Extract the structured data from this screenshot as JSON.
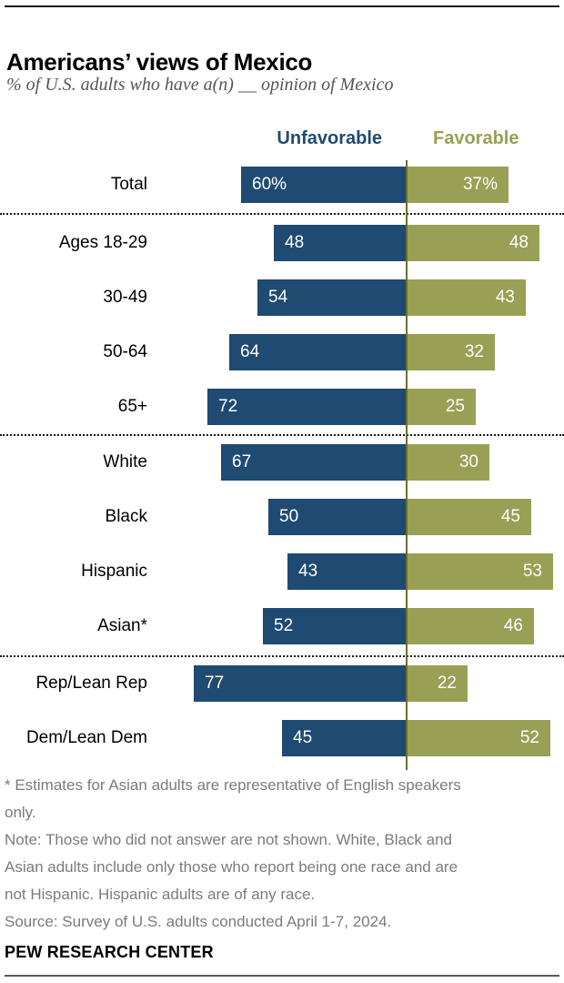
{
  "header": {
    "title": "Americans’ views of Mexico",
    "subtitle": "% of U.S. adults who have a(n) __ opinion of Mexico"
  },
  "legend": {
    "unfavorable_label": "Unfavorable",
    "favorable_label": "Favorable"
  },
  "colors": {
    "unfavorable": "#1f4a72",
    "favorable": "#99a055",
    "axis_line": "#6b6e2e"
  },
  "chart_data": {
    "type": "bar",
    "orientation": "horizontal-diverging",
    "title": "Americans’ views of Mexico",
    "categories": [
      "Total",
      "Ages 18-29",
      "30-49",
      "50-64",
      "65+",
      "White",
      "Black",
      "Hispanic",
      "Asian*",
      "Rep/Lean Rep",
      "Dem/Lean Dem"
    ],
    "series": [
      {
        "name": "Unfavorable",
        "side": "left",
        "color": "#1f4a72",
        "values": [
          60,
          48,
          54,
          64,
          72,
          67,
          50,
          43,
          52,
          77,
          45
        ],
        "labels": [
          "60%",
          "48",
          "54",
          "64",
          "72",
          "67",
          "50",
          "43",
          "52",
          "77",
          "45"
        ]
      },
      {
        "name": "Favorable",
        "side": "right",
        "color": "#99a055",
        "values": [
          37,
          48,
          43,
          32,
          25,
          30,
          45,
          53,
          46,
          22,
          52
        ],
        "labels": [
          "37%",
          "48",
          "43",
          "32",
          "25",
          "30",
          "45",
          "53",
          "46",
          "22",
          "52"
        ]
      }
    ],
    "group_breaks_after": [
      "Total",
      "65+",
      "Asian*"
    ],
    "axis": {
      "unit": "percent",
      "center": 0
    },
    "value_labels_inside_bars": true,
    "legend_position": "top"
  },
  "footnotes": {
    "lines": [
      "* Estimates for Asian adults are representative of English speakers",
      "only.",
      "Note: Those who did not answer are not shown. White, Black and",
      "Asian adults include only those who report being one race and are",
      "not Hispanic. Hispanic adults are of any race.",
      "Source: Survey of U.S. adults conducted April 1-7, 2024."
    ]
  },
  "footer": {
    "brand": "PEW RESEARCH CENTER"
  }
}
